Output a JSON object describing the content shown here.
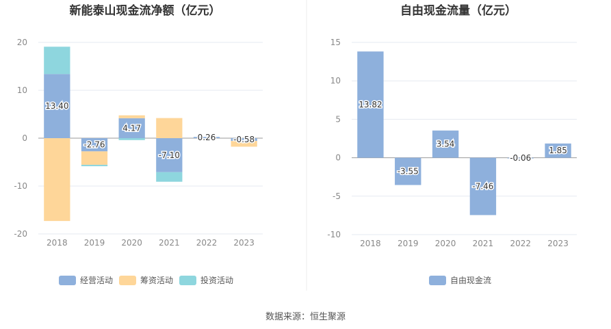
{
  "chart_data": [
    {
      "type": "bar",
      "title": "新能泰山现金流净额（亿元）",
      "categories": [
        "2018",
        "2019",
        "2020",
        "2021",
        "2022",
        "2023"
      ],
      "ylim": [
        -20,
        20
      ],
      "yticks": [
        -20,
        -10,
        0,
        10,
        20
      ],
      "stacked": true,
      "grid": true,
      "legend_position": "bottom",
      "series": [
        {
          "name": "经营活动",
          "color": "#8eb0dc",
          "values": [
            13.4,
            -2.76,
            4.17,
            -7.1,
            0.26,
            -0.58
          ],
          "labels": [
            "13.40",
            "-2.76",
            "4.17",
            "-7.10",
            "0.26",
            "-0.58"
          ]
        },
        {
          "name": "筹资活动",
          "color": "#fed699",
          "values": [
            -17.3,
            -2.8,
            0.6,
            4.2,
            0.0,
            -1.2
          ],
          "labels": []
        },
        {
          "name": "投资活动",
          "color": "#8ed6de",
          "values": [
            5.7,
            -0.3,
            -0.4,
            -2.0,
            0.0,
            0.0
          ],
          "labels": []
        }
      ]
    },
    {
      "type": "bar",
      "title": "自由现金流量（亿元）",
      "categories": [
        "2018",
        "2019",
        "2020",
        "2021",
        "2022",
        "2023"
      ],
      "ylim": [
        -10,
        15
      ],
      "yticks": [
        -10,
        -5,
        0,
        5,
        10,
        15
      ],
      "grid": true,
      "legend_position": "bottom",
      "series": [
        {
          "name": "自由现金流",
          "color": "#8eb0dc",
          "values": [
            13.82,
            -3.55,
            3.54,
            -7.46,
            -0.06,
            1.85
          ],
          "labels": [
            "13.82",
            "-3.55",
            "3.54",
            "-7.46",
            "-0.06",
            "1.85"
          ]
        }
      ]
    }
  ],
  "source": "数据来源：恒生聚源"
}
